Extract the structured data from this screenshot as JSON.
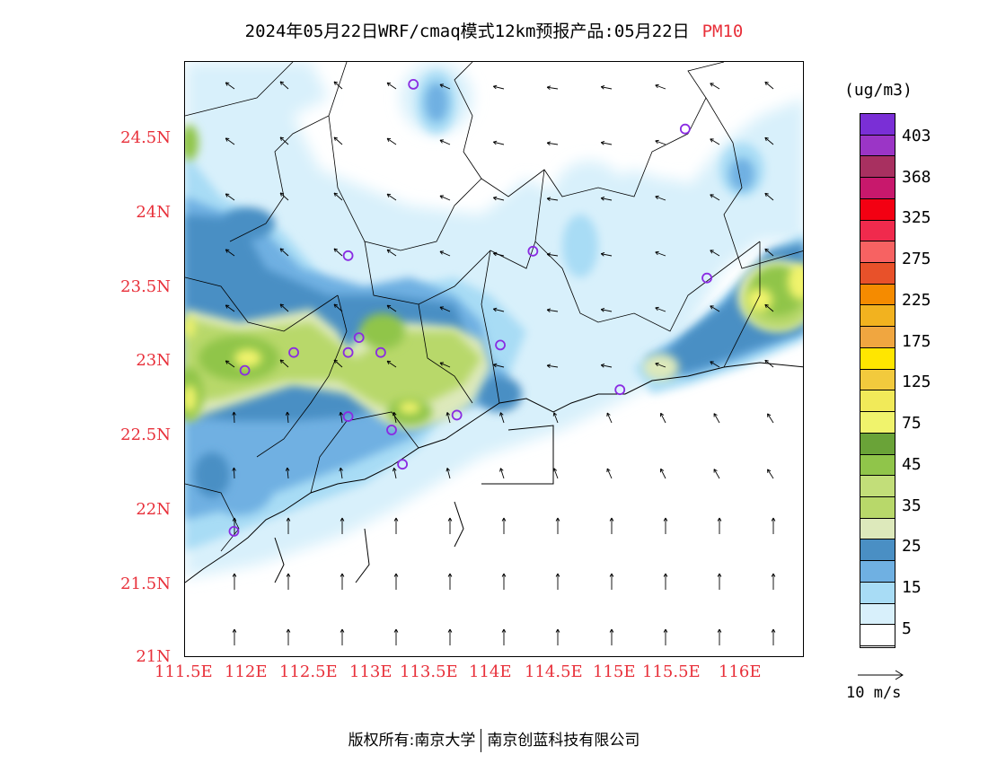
{
  "header": {
    "title": "2024年05月22日WRF/cmaq模式12km预报产品:05月22日",
    "pollutant": "PM10"
  },
  "axes": {
    "y_labels": [
      "24.5N",
      "24N",
      "23.5N",
      "23N",
      "22.5N",
      "22N",
      "21.5N",
      "21N"
    ],
    "x_labels": [
      "111.5E",
      "112E",
      "112.5E",
      "113E",
      "113.5E",
      "114E",
      "114.5E",
      "115E",
      "115.5E",
      "116E"
    ],
    "lon_range": [
      111.5,
      117.2
    ],
    "lat_range": [
      21.0,
      25.0
    ]
  },
  "colorbar": {
    "unit": "(ug/m3)",
    "labels": [
      "403",
      "368",
      "325",
      "275",
      "225",
      "175",
      "125",
      "75",
      "45",
      "35",
      "25",
      "15",
      "5"
    ],
    "colors": [
      "#7a2fd6",
      "#9b35c6",
      "#a83060",
      "#c8186c",
      "#f30012",
      "#f02a4d",
      "#f76262",
      "#e8512a",
      "#f58b00",
      "#f2b21f",
      "#f0a640",
      "#ffe600",
      "#f2ca3d",
      "#f1ea59",
      "#f0f36c",
      "#6aa338",
      "#90c54a",
      "#c2de79",
      "#b8d86a",
      "#dde9bb",
      "#4a8fc4",
      "#6fb0e2",
      "#a8dcf5",
      "#d8f0fb",
      "#ffffff"
    ]
  },
  "wind_legend": {
    "label": "10 m/s"
  },
  "footer": {
    "left": "版权所有:南京大学",
    "right": "南京创蓝科技有限公司"
  },
  "stations": [
    [
      113.6,
      24.85
    ],
    [
      116.1,
      24.55
    ],
    [
      113.0,
      23.7
    ],
    [
      114.7,
      23.73
    ],
    [
      116.3,
      23.55
    ],
    [
      113.1,
      23.15
    ],
    [
      113.0,
      23.05
    ],
    [
      113.3,
      23.05
    ],
    [
      114.4,
      23.1
    ],
    [
      112.5,
      23.05
    ],
    [
      112.05,
      22.93
    ],
    [
      113.0,
      22.62
    ],
    [
      113.4,
      22.53
    ],
    [
      114.0,
      22.63
    ],
    [
      113.5,
      22.3
    ],
    [
      115.5,
      22.8
    ],
    [
      111.95,
      21.85
    ]
  ]
}
